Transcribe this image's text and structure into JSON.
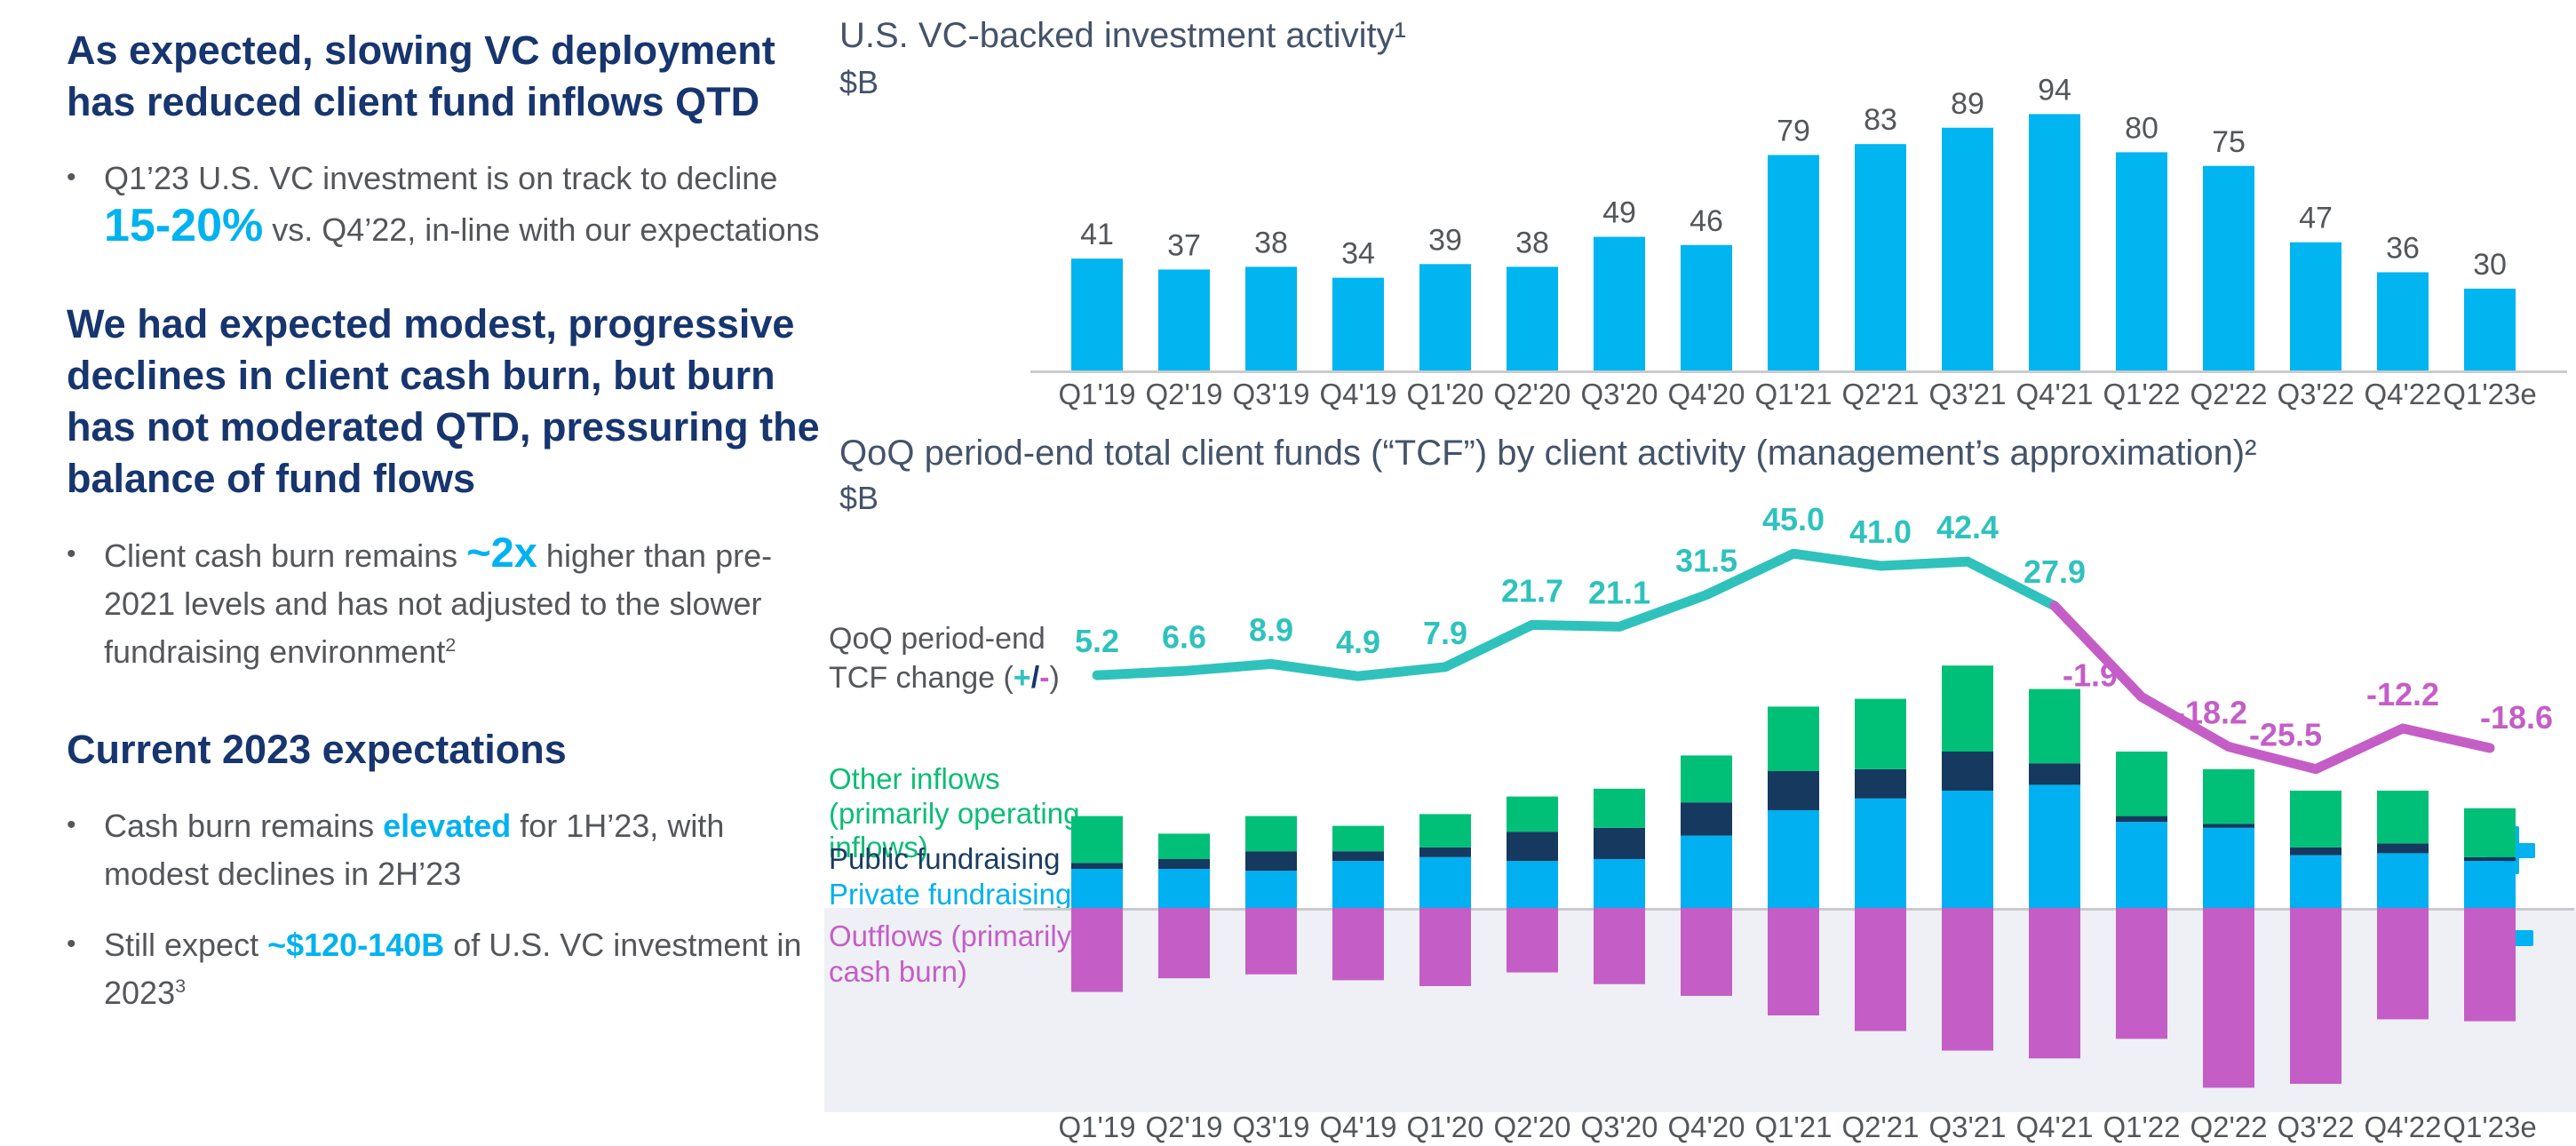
{
  "ui": {
    "bullet_char": "•"
  },
  "colors": {
    "heading_navy": "#17356e",
    "body_gray": "#54565b",
    "accent_cyan": "#00b2f0",
    "bar_blue": "#00b5f0",
    "stack_private_blue": "#00b0f0",
    "stack_public_navy": "#16395f",
    "stack_other_green": "#00c077",
    "stack_outflow_magenta": "#c45ec6",
    "line_teal": "#2fc2bd",
    "line_magenta": "#c45ec6",
    "axis_gray": "#c9cbcd",
    "band_gray": "#eef0f5",
    "label_gray": "#53565a"
  },
  "commentary": {
    "sections": [
      {
        "heading": "As expected, slowing VC deployment has reduced client fund inflows QTD",
        "bullet": {
          "pre": "Q1’23 U.S. VC investment is on track to decline ",
          "accent": "15-20%",
          "post": " vs. Q4’22, in-line with our expectations",
          "sup": ""
        }
      },
      {
        "heading": "We had expected modest, progressive declines in client cash burn, but burn has not moderated QTD, pressuring the balance of fund flows",
        "bullet": {
          "pre": "Client cash burn remains ",
          "accent": "~2x",
          "post": " higher than pre-2021 levels and has not adjusted to the slower fundraising environment",
          "sup": "2"
        }
      },
      {
        "heading": "Current 2023 expectations",
        "bullet_a": {
          "pre": "Cash burn remains ",
          "accent": "elevated",
          "post": " for 1H’23, with modest declines in 2H’23",
          "sup": ""
        },
        "bullet_b": {
          "pre": "Still expect ",
          "accent": "~$120-140B",
          "post": " of U.S. VC investment in 2023",
          "sup": "3"
        }
      }
    ]
  },
  "top_chart": {
    "title": "U.S. VC-backed investment activity¹",
    "unit": "$B"
  },
  "bottom_chart": {
    "title": "QoQ period-end total client funds (“TCF”) by client activity (management’s approximation)²",
    "unit": "$B",
    "legend": {
      "line_l1": "QoQ period-end",
      "line_l2_pre": "TCF change (",
      "line_plus": "+",
      "line_slash": "/",
      "line_minus": "-",
      "line_l2_post": ")",
      "other_inflows": "Other inflows (primarily operating inflows)",
      "public_fundraising": "Public fundraising",
      "private_fundraising": "Private fundraising",
      "outflows": "Outflows (primarily cash burn)"
    }
  },
  "chart_data": [
    {
      "type": "bar",
      "title": "U.S. VC-backed investment activity¹",
      "ylabel": "$B",
      "legend_position": "none",
      "grid": false,
      "ylim": [
        0,
        100
      ],
      "categories": [
        "Q1'19",
        "Q2'19",
        "Q3'19",
        "Q4'19",
        "Q1'20",
        "Q2'20",
        "Q3'20",
        "Q4'20",
        "Q1'21",
        "Q2'21",
        "Q3'21",
        "Q4'21",
        "Q1'22",
        "Q2'22",
        "Q3'22",
        "Q4'22",
        "Q1'23e"
      ],
      "values": [
        41,
        37,
        38,
        34,
        39,
        38,
        49,
        46,
        79,
        83,
        89,
        94,
        80,
        75,
        47,
        36,
        30
      ]
    },
    {
      "type": "stacked-bar-line",
      "title": "QoQ period-end total client funds (“TCF”) by client activity (management’s approximation)²",
      "ylabel": "$B",
      "grid": false,
      "note": "stacked segment values are approximations read from bar heights; only the line values are labeled in the source",
      "categories": [
        "Q1'19",
        "Q2'19",
        "Q3'19",
        "Q4'19",
        "Q1'20",
        "Q2'20",
        "Q3'20",
        "Q4'20",
        "Q1'21",
        "Q2'21",
        "Q3'21",
        "Q4'21",
        "Q1'22",
        "Q2'22",
        "Q3'22",
        "Q4'22",
        "Q1'23e"
      ],
      "series": [
        {
          "name": "Private fundraising",
          "role": "inflow",
          "values": [
            20,
            20,
            19,
            24,
            26,
            24,
            25,
            37,
            50,
            56,
            60,
            63,
            44,
            41,
            27,
            28,
            24
          ]
        },
        {
          "name": "Public fundraising",
          "role": "inflow",
          "values": [
            3,
            5,
            10,
            5,
            5,
            15,
            16,
            17,
            20,
            15,
            20,
            11,
            3,
            2,
            4,
            5,
            2
          ]
        },
        {
          "name": "Other inflows (primarily operating inflows)",
          "role": "inflow",
          "values": [
            24,
            13,
            18,
            13,
            17,
            18,
            20,
            24,
            33,
            36,
            44,
            38,
            33,
            28,
            29,
            27,
            25
          ]
        },
        {
          "name": "Outflows (primarily cash burn)",
          "role": "outflow",
          "values": [
            43,
            36,
            34,
            37,
            40,
            33,
            39,
            45,
            55,
            63,
            73,
            77,
            67,
            92,
            90,
            57,
            58
          ]
        }
      ],
      "line": {
        "name": "QoQ period-end TCF change (+/-)",
        "values": [
          5.2,
          6.6,
          8.9,
          4.9,
          7.9,
          21.7,
          21.1,
          31.5,
          45.0,
          41.0,
          42.4,
          27.9,
          -1.9,
          -18.2,
          -25.5,
          -12.2,
          -18.6
        ],
        "positive_color": "#2fc2bd",
        "negative_color": "#c45ec6"
      }
    }
  ]
}
